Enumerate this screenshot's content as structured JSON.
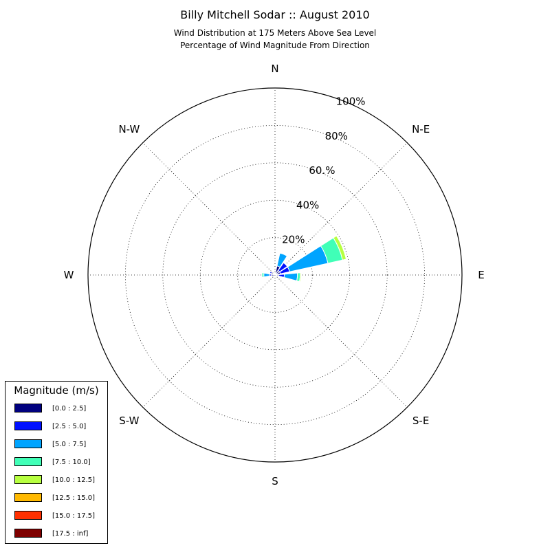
{
  "header": {
    "title": "Billy Mitchell Sodar :: August 2010",
    "subtitle_line1": "Wind Distribution at 175 Meters Above Sea Level",
    "subtitle_line2": "Percentage of Wind Magnitude From Direction"
  },
  "legend": {
    "title": "Magnitude (m/s)",
    "items": [
      {
        "label": "[0.0 : 2.5]",
        "color": "#00007f"
      },
      {
        "label": "[2.5 : 5.0]",
        "color": "#0010ff"
      },
      {
        "label": "[5.0 : 7.5]",
        "color": "#00a4ff"
      },
      {
        "label": "[7.5 : 10.0]",
        "color": "#40ffb7"
      },
      {
        "label": "[10.0 : 12.5]",
        "color": "#b7ff40"
      },
      {
        "label": "[12.5 : 15.0]",
        "color": "#ffb900"
      },
      {
        "label": "[15.0 : 17.5]",
        "color": "#ff3000"
      },
      {
        "label": "[17.5 : inf]",
        "color": "#7f0000"
      }
    ]
  },
  "chart_data": {
    "type": "windrose",
    "title": "Billy Mitchell Sodar :: August 2010",
    "directions": [
      "N",
      "N-E",
      "E",
      "S-E",
      "S",
      "S-W",
      "W",
      "N-W"
    ],
    "radial_ticks": [
      "20%",
      "40%",
      "60.%",
      "80%",
      "100%"
    ],
    "radial_values": [
      20,
      40,
      60,
      80,
      100
    ],
    "rmax": 100,
    "grid": true,
    "legend_position": "lower-left",
    "sectors": [
      {
        "center_deg": 22.5,
        "stacks": [
          {
            "bin": 0,
            "to": 5
          },
          {
            "bin": 1,
            "to": 5
          },
          {
            "bin": 2,
            "to": 12
          }
        ]
      },
      {
        "center_deg": 45,
        "stacks": [
          {
            "bin": 0,
            "to": 3
          },
          {
            "bin": 1,
            "to": 8
          }
        ]
      },
      {
        "center_deg": 67.5,
        "stacks": [
          {
            "bin": 0,
            "to": 3
          },
          {
            "bin": 1,
            "to": 8
          },
          {
            "bin": 2,
            "to": 29
          },
          {
            "bin": 3,
            "to": 37
          },
          {
            "bin": 4,
            "to": 39
          }
        ]
      },
      {
        "center_deg": 95,
        "stacks": [
          {
            "bin": 0,
            "to": 2
          },
          {
            "bin": 1,
            "to": 5
          },
          {
            "bin": 2,
            "to": 12
          },
          {
            "bin": 3,
            "to": 13.5
          },
          {
            "bin": 4,
            "to": 14
          }
        ]
      },
      {
        "center_deg": 270,
        "stacks": [
          {
            "bin": 0,
            "to": 2
          },
          {
            "bin": 1,
            "to": 3
          },
          {
            "bin": 2,
            "to": 6
          },
          {
            "bin": 3,
            "to": 7
          }
        ]
      },
      {
        "center_deg": 300,
        "stacks": [
          {
            "bin": 0,
            "to": 2
          },
          {
            "bin": 1,
            "to": 3
          }
        ]
      }
    ]
  }
}
